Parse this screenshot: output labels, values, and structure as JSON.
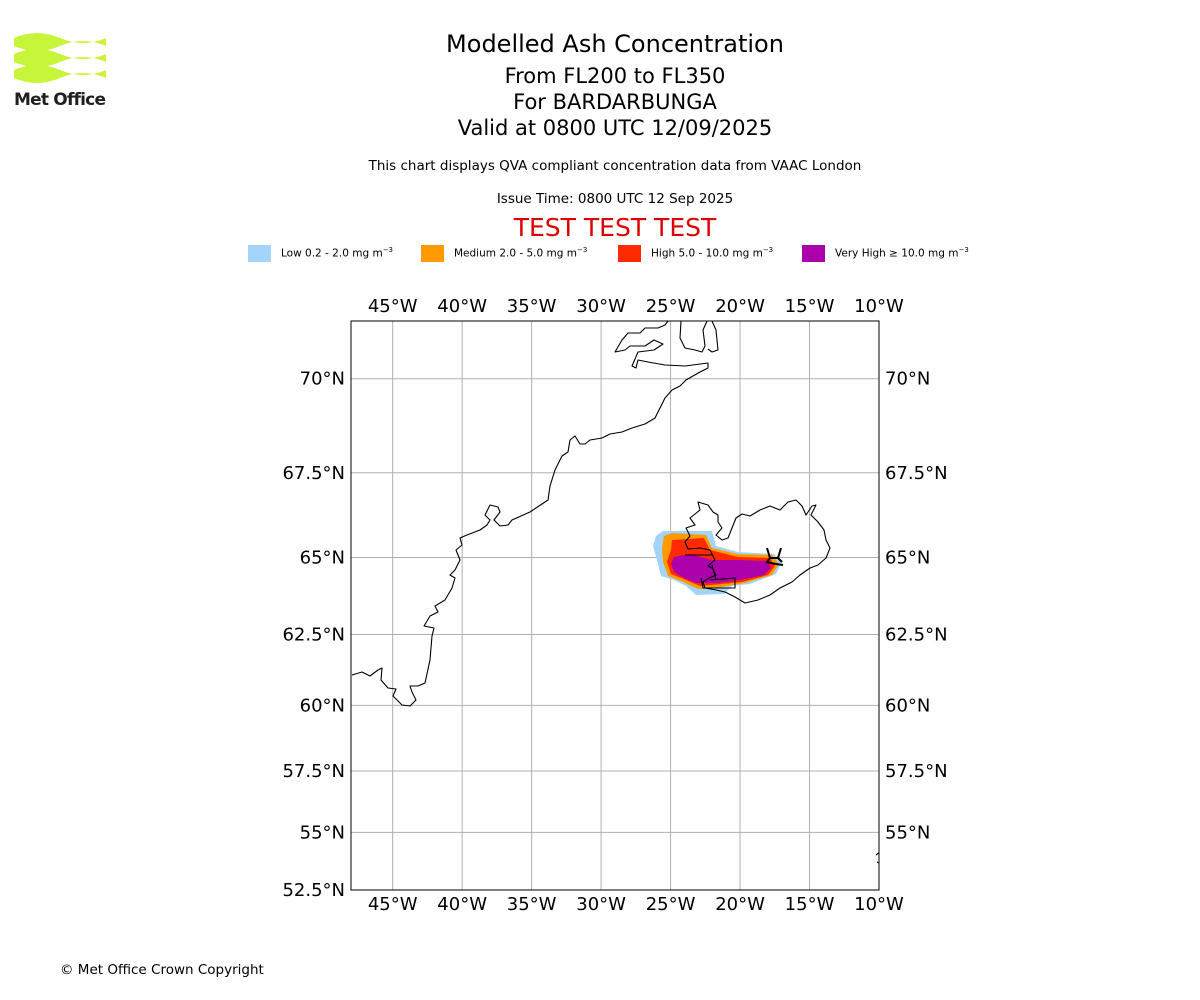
{
  "logo": {
    "text": "Met Office",
    "color": "#c6f53a"
  },
  "header": {
    "title": "Modelled Ash Concentration",
    "levels": "From FL200 to FL350",
    "volcano": "For BARDARBUNGA",
    "valid": "Valid at 0800 UTC 12/09/2025",
    "description": "This chart displays QVA compliant concentration data from VAAC London",
    "issue_time": "Issue Time: 0800 UTC 12 Sep 2025",
    "test_banner": "TEST TEST TEST"
  },
  "legend": [
    {
      "label": "Low 0.2 - 2.0 mg m",
      "color": "#a3d5fa"
    },
    {
      "label": "Medium 2.0 - 5.0 mg m",
      "color": "#ff9a00"
    },
    {
      "label": "High 5.0 - 10.0 mg m",
      "color": "#ff2a00"
    },
    {
      "label": "Very High ≥ 10.0 mg m",
      "color": "#ad00ad"
    }
  ],
  "legend_unit_exponent": "−3",
  "map": {
    "lon_ticks": [
      "45°W",
      "40°W",
      "35°W",
      "30°W",
      "25°W",
      "20°W",
      "15°W",
      "10°W"
    ],
    "lat_ticks": [
      "70°N",
      "67.5°N",
      "65°N",
      "62.5°N",
      "60°N",
      "57.5°N",
      "55°N",
      "52.5°N"
    ],
    "lon_range": [
      -48,
      -10
    ],
    "lat_range": [
      52.5,
      71.5
    ],
    "grid": true,
    "gridline_color": "#b0b0b0",
    "coastline_color": "#000000",
    "ash_cloud": {
      "extent_lon": [
        -26,
        -17.5
      ],
      "extent_lat": [
        63.8,
        65.6
      ]
    }
  },
  "footer": {
    "copyright": "© Met Office Crown Copyright"
  }
}
